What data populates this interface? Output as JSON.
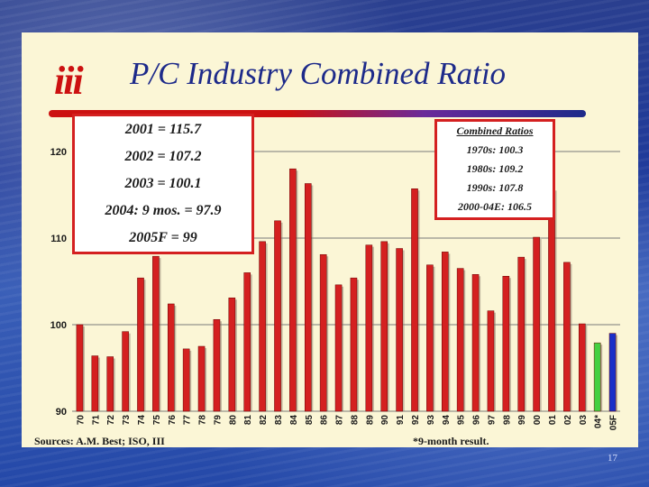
{
  "slide": {
    "title": "P/C Industry Combined Ratio",
    "logo_text": "iii",
    "sources": "Sources: A.M. Best; ISO, III",
    "note": "*9-month result.",
    "page_number": "17"
  },
  "left_box": [
    "2001 = 115.7",
    "2002 = 107.2",
    "2003 = 100.1",
    "2004: 9 mos. = 97.9",
    "2005F = 99"
  ],
  "right_box": {
    "header": "Combined Ratios",
    "lines": [
      "1970s: 100.3",
      "1980s: 109.2",
      "1990s: 107.8",
      "2000-04E: 106.5"
    ]
  },
  "chart_data": {
    "type": "bar",
    "title": "P/C Industry Combined Ratio",
    "xlabel": "",
    "ylabel": "",
    "ylim": [
      90,
      120
    ],
    "yticks": [
      90,
      100,
      110,
      120
    ],
    "grid": true,
    "categories": [
      "70",
      "71",
      "72",
      "73",
      "74",
      "75",
      "76",
      "77",
      "78",
      "79",
      "80",
      "81",
      "82",
      "83",
      "84",
      "85",
      "86",
      "87",
      "88",
      "89",
      "90",
      "91",
      "92",
      "93",
      "94",
      "95",
      "96",
      "97",
      "98",
      "99",
      "00",
      "01",
      "02",
      "03",
      "04*",
      "05F"
    ],
    "values": [
      100.0,
      96.4,
      96.3,
      99.2,
      105.4,
      107.9,
      102.4,
      97.2,
      97.5,
      100.6,
      103.1,
      106.0,
      109.6,
      112.0,
      118.0,
      116.3,
      108.1,
      104.6,
      105.4,
      109.2,
      109.6,
      108.8,
      115.7,
      106.9,
      108.4,
      106.5,
      105.8,
      101.6,
      105.6,
      107.8,
      110.1,
      115.7,
      107.2,
      100.1,
      97.9,
      99.0
    ],
    "colors": {
      "default": "#d42020",
      "04*": "#44d040",
      "05F": "#1a2fc8"
    }
  }
}
